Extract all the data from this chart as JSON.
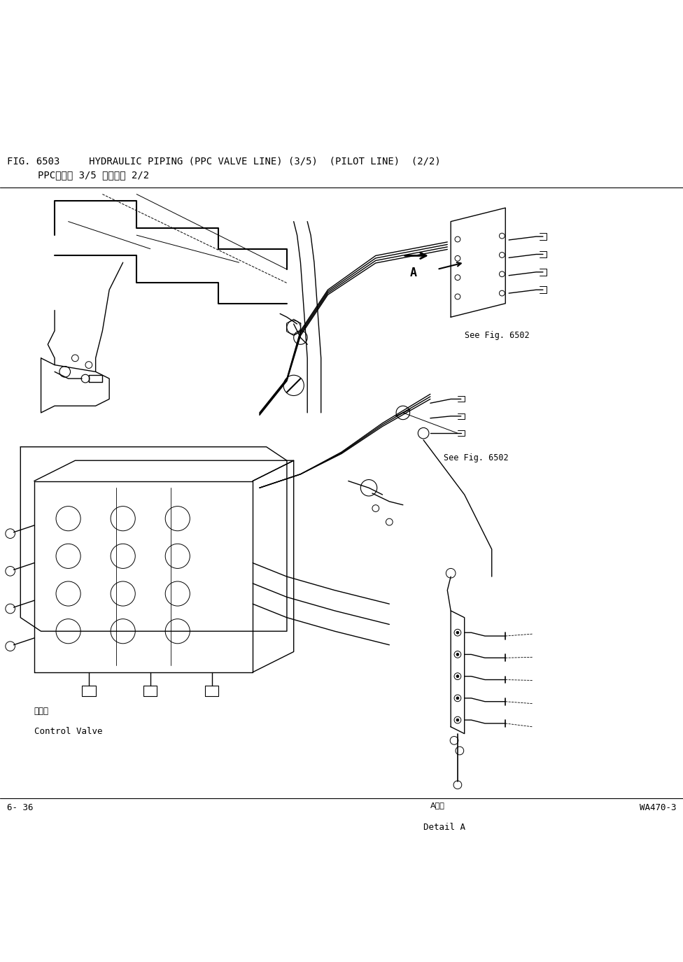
{
  "title_line1": "FIG. 6503     HYDRAULIC PIPING (PPC VALVE LINE) (3/5)  (PILOT LINE)  (2/2)",
  "title_line2": "PPC阀管路 3/5 先导管路 2/2",
  "footer_left": "6- 36",
  "footer_right": "WA470-3",
  "see_fig_1": "See Fig. 6502",
  "see_fig_2": "See Fig. 6502",
  "control_valve_cn": "控制阀",
  "control_valve_en": "Control Valve",
  "detail_a_cn": "A详细",
  "detail_a_en": "Detail A",
  "label_a": "A",
  "bg_color": "#ffffff",
  "line_color": "#000000",
  "text_color": "#000000",
  "font_size_title": 10,
  "font_size_label": 9,
  "font_size_footer": 9
}
